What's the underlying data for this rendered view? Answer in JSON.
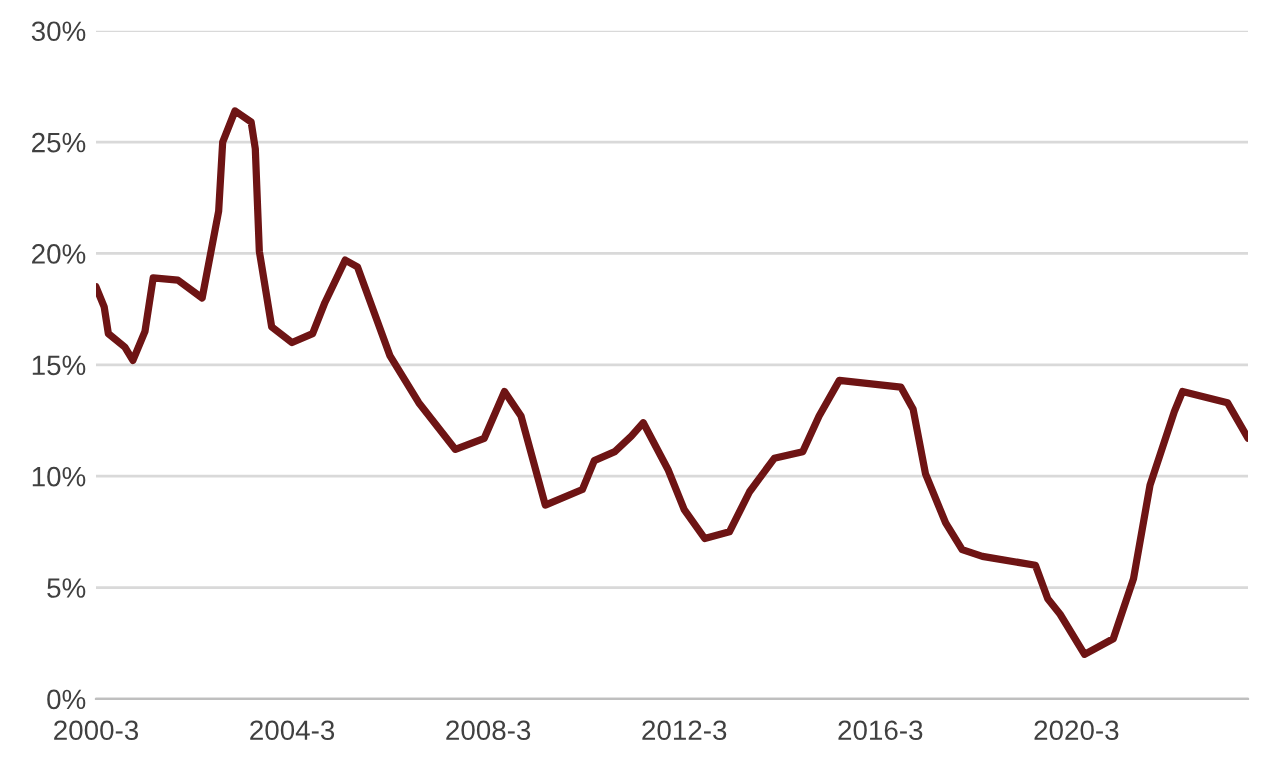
{
  "chart_data": {
    "type": "line",
    "x": [
      "2000-03",
      "2000-05",
      "2000-06",
      "2000-10",
      "2000-12",
      "2001-03",
      "2001-05",
      "2001-11",
      "2002-05",
      "2002-09",
      "2002-10",
      "2003-01",
      "2003-05",
      "2003-06",
      "2003-07",
      "2003-10",
      "2004-03",
      "2004-08",
      "2004-11",
      "2005-04",
      "2005-07",
      "2006-03",
      "2006-10",
      "2007-07",
      "2008-02",
      "2008-07",
      "2008-11",
      "2009-05",
      "2010-02",
      "2010-05",
      "2010-10",
      "2011-02",
      "2011-05",
      "2011-11",
      "2012-03",
      "2012-08",
      "2013-02",
      "2013-07",
      "2014-01",
      "2014-08",
      "2014-12",
      "2015-05",
      "2016-08",
      "2016-11",
      "2017-02",
      "2017-07",
      "2017-11",
      "2018-04",
      "2019-05",
      "2019-08",
      "2019-11",
      "2020-05",
      "2020-12",
      "2021-05",
      "2021-09",
      "2022-03",
      "2022-05",
      "2023-04",
      "2023-09"
    ],
    "series": [
      {
        "color": "#6e1414",
        "values": [
          18.5,
          17.6,
          16.4,
          15.8,
          15.2,
          16.5,
          18.9,
          18.8,
          18.0,
          21.9,
          25.0,
          26.4,
          25.9,
          24.7,
          20.1,
          16.7,
          16.0,
          16.4,
          17.8,
          19.7,
          19.4,
          15.4,
          13.3,
          11.2,
          11.7,
          13.8,
          12.7,
          8.7,
          9.4,
          10.7,
          11.1,
          11.8,
          12.4,
          10.3,
          8.5,
          7.2,
          7.5,
          9.3,
          10.8,
          11.1,
          12.7,
          14.3,
          14.0,
          13.0,
          10.1,
          7.9,
          6.7,
          6.4,
          6.0,
          4.5,
          3.8,
          2.0,
          2.7,
          5.4,
          9.6,
          12.9,
          13.8,
          13.3,
          11.7
        ]
      }
    ],
    "xlim": [
      "2000-03",
      "2023-09"
    ],
    "xticks": [
      {
        "value": "2000-03",
        "label": "2000-3"
      },
      {
        "value": "2004-03",
        "label": "2004-3"
      },
      {
        "value": "2008-03",
        "label": "2008-3"
      },
      {
        "value": "2012-03",
        "label": "2012-3"
      },
      {
        "value": "2016-03",
        "label": "2016-3"
      },
      {
        "value": "2020-03",
        "label": "2020-3"
      }
    ],
    "ylim": [
      0,
      30
    ],
    "yticks": [
      {
        "value": 0,
        "label": "0%"
      },
      {
        "value": 5,
        "label": "5%"
      },
      {
        "value": 10,
        "label": "10%"
      },
      {
        "value": 15,
        "label": "15%"
      },
      {
        "value": 20,
        "label": "20%"
      },
      {
        "value": 25,
        "label": "25%"
      },
      {
        "value": 30,
        "label": "30%"
      }
    ],
    "grid": "y",
    "marker": "none",
    "line_style": "solid"
  }
}
